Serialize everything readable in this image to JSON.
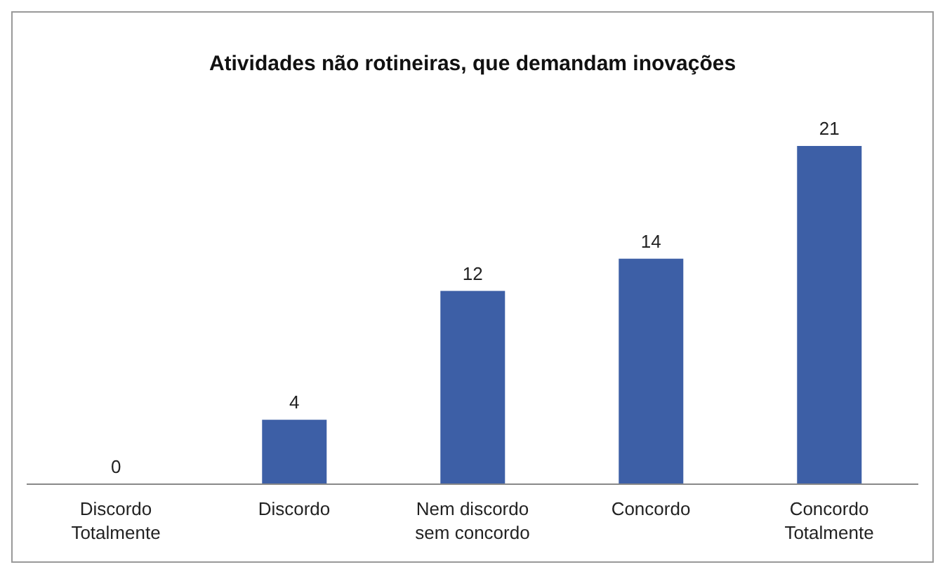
{
  "chart_data": {
    "type": "bar",
    "title": "Atividades não rotineiras, que demandam inovações",
    "categories": [
      "Discordo\nTotalmente",
      "Discordo",
      "Nem discordo\nsem concordo",
      "Concordo",
      "Concordo\nTotalmente"
    ],
    "values": [
      0,
      4,
      12,
      14,
      21
    ],
    "color": "#3d5fa6",
    "data_labels": true
  }
}
